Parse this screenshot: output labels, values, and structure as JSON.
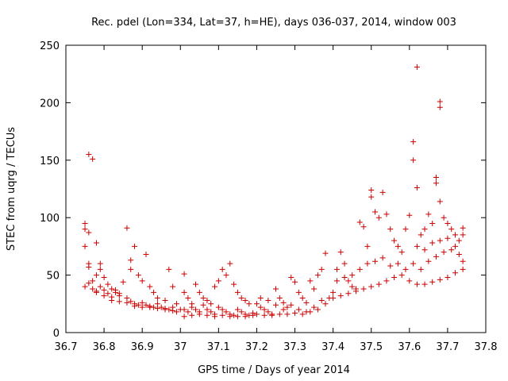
{
  "chart_data": {
    "type": "scatter",
    "title": "Rec. pdel (Lon=334, Lat=37, h=HE), days 036-037, 2014, window 003",
    "xlabel": "GPS time / Days of year 2014",
    "ylabel": "STEC from uqrg / TECUs",
    "xlim": [
      36.7,
      37.8
    ],
    "ylim": [
      0,
      250
    ],
    "xticks": [
      "36.7",
      "36.8",
      "36.9",
      "37",
      "37.1",
      "37.2",
      "37.3",
      "37.4",
      "37.5",
      "37.6",
      "37.7",
      "37.8"
    ],
    "yticks": [
      "0",
      "50",
      "100",
      "150",
      "200",
      "250"
    ],
    "grid": false,
    "marker": "+",
    "color": "#cc0000",
    "points": [
      [
        36.75,
        95
      ],
      [
        36.75,
        90
      ],
      [
        36.75,
        75
      ],
      [
        36.76,
        155
      ],
      [
        36.77,
        151
      ],
      [
        36.78,
        78
      ],
      [
        36.76,
        87
      ],
      [
        36.76,
        60
      ],
      [
        36.76,
        57
      ],
      [
        36.75,
        40
      ],
      [
        36.77,
        45
      ],
      [
        36.78,
        50
      ],
      [
        36.79,
        55
      ],
      [
        36.79,
        60
      ],
      [
        36.8,
        48
      ],
      [
        36.81,
        42
      ],
      [
        36.82,
        38
      ],
      [
        36.83,
        35
      ],
      [
        36.84,
        32
      ],
      [
        36.86,
        91
      ],
      [
        36.87,
        63
      ],
      [
        36.88,
        75
      ],
      [
        36.87,
        55
      ],
      [
        36.89,
        50
      ],
      [
        36.9,
        45
      ],
      [
        36.91,
        68
      ],
      [
        36.92,
        40
      ],
      [
        36.93,
        35
      ],
      [
        36.94,
        30
      ],
      [
        36.96,
        28
      ],
      [
        36.97,
        55
      ],
      [
        36.98,
        40
      ],
      [
        36.99,
        25
      ],
      [
        36.76,
        43
      ],
      [
        36.77,
        38
      ],
      [
        36.78,
        35
      ],
      [
        36.79,
        40
      ],
      [
        36.8,
        37
      ],
      [
        36.81,
        34
      ],
      [
        36.82,
        31
      ],
      [
        36.83,
        37
      ],
      [
        36.84,
        34
      ],
      [
        36.85,
        44
      ],
      [
        36.86,
        30
      ],
      [
        36.87,
        27
      ],
      [
        36.88,
        25
      ],
      [
        36.89,
        24
      ],
      [
        36.9,
        26
      ],
      [
        36.91,
        24
      ],
      [
        36.92,
        23
      ],
      [
        36.93,
        22
      ],
      [
        36.94,
        25
      ],
      [
        36.95,
        22
      ],
      [
        36.96,
        21
      ],
      [
        36.97,
        20
      ],
      [
        36.98,
        19
      ],
      [
        36.99,
        18
      ],
      [
        36.78,
        36
      ],
      [
        36.8,
        32
      ],
      [
        36.82,
        28
      ],
      [
        36.84,
        27
      ],
      [
        36.86,
        26
      ],
      [
        36.88,
        23
      ],
      [
        36.9,
        22
      ],
      [
        36.92,
        22
      ],
      [
        36.94,
        21
      ],
      [
        36.96,
        20
      ],
      [
        36.98,
        22
      ],
      [
        37.0,
        20
      ],
      [
        37.01,
        51
      ],
      [
        37.01,
        35
      ],
      [
        37.02,
        30
      ],
      [
        37.03,
        25
      ],
      [
        37.04,
        42
      ],
      [
        37.05,
        35
      ],
      [
        37.06,
        30
      ],
      [
        37.07,
        28
      ],
      [
        37.08,
        25
      ],
      [
        37.09,
        40
      ],
      [
        37.1,
        45
      ],
      [
        37.11,
        55
      ],
      [
        37.12,
        50
      ],
      [
        37.13,
        60
      ],
      [
        37.14,
        42
      ],
      [
        37.15,
        35
      ],
      [
        37.16,
        30
      ],
      [
        37.17,
        28
      ],
      [
        37.18,
        25
      ],
      [
        37.01,
        20
      ],
      [
        37.02,
        18
      ],
      [
        37.03,
        22
      ],
      [
        37.04,
        20
      ],
      [
        37.05,
        18
      ],
      [
        37.06,
        24
      ],
      [
        37.07,
        20
      ],
      [
        37.08,
        18
      ],
      [
        37.09,
        16
      ],
      [
        37.1,
        22
      ],
      [
        37.11,
        20
      ],
      [
        37.12,
        18
      ],
      [
        37.13,
        16
      ],
      [
        37.14,
        15
      ],
      [
        37.15,
        20
      ],
      [
        37.16,
        18
      ],
      [
        37.17,
        16
      ],
      [
        37.18,
        15
      ],
      [
        37.19,
        17
      ],
      [
        37.01,
        14
      ],
      [
        37.03,
        15
      ],
      [
        37.05,
        16
      ],
      [
        37.07,
        15
      ],
      [
        37.09,
        14
      ],
      [
        37.11,
        15
      ],
      [
        37.13,
        14
      ],
      [
        37.15,
        14
      ],
      [
        37.17,
        14
      ],
      [
        37.19,
        15
      ],
      [
        37.2,
        25
      ],
      [
        37.21,
        22
      ],
      [
        37.22,
        20
      ],
      [
        37.23,
        18
      ],
      [
        37.24,
        16
      ],
      [
        37.25,
        38
      ],
      [
        37.26,
        30
      ],
      [
        37.27,
        26
      ],
      [
        37.28,
        22
      ],
      [
        37.29,
        48
      ],
      [
        37.3,
        44
      ],
      [
        37.31,
        35
      ],
      [
        37.32,
        30
      ],
      [
        37.33,
        26
      ],
      [
        37.34,
        45
      ],
      [
        37.35,
        38
      ],
      [
        37.36,
        50
      ],
      [
        37.37,
        55
      ],
      [
        37.38,
        69
      ],
      [
        37.2,
        16
      ],
      [
        37.22,
        15
      ],
      [
        37.24,
        15
      ],
      [
        37.26,
        16
      ],
      [
        37.28,
        16
      ],
      [
        37.3,
        17
      ],
      [
        37.32,
        16
      ],
      [
        37.34,
        18
      ],
      [
        37.36,
        20
      ],
      [
        37.38,
        25
      ],
      [
        37.21,
        30
      ],
      [
        37.23,
        28
      ],
      [
        37.25,
        24
      ],
      [
        37.27,
        20
      ],
      [
        37.29,
        24
      ],
      [
        37.31,
        20
      ],
      [
        37.33,
        18
      ],
      [
        37.35,
        22
      ],
      [
        37.37,
        28
      ],
      [
        37.39,
        30
      ],
      [
        37.4,
        35
      ],
      [
        37.41,
        55
      ],
      [
        37.42,
        70
      ],
      [
        37.43,
        60
      ],
      [
        37.44,
        45
      ],
      [
        37.45,
        40
      ],
      [
        37.46,
        38
      ],
      [
        37.47,
        96
      ],
      [
        37.48,
        92
      ],
      [
        37.49,
        75
      ],
      [
        37.5,
        124
      ],
      [
        37.5,
        118
      ],
      [
        37.51,
        105
      ],
      [
        37.52,
        100
      ],
      [
        37.53,
        122
      ],
      [
        37.54,
        103
      ],
      [
        37.55,
        90
      ],
      [
        37.56,
        80
      ],
      [
        37.57,
        75
      ],
      [
        37.58,
        70
      ],
      [
        37.59,
        90
      ],
      [
        37.4,
        30
      ],
      [
        37.42,
        32
      ],
      [
        37.44,
        34
      ],
      [
        37.46,
        36
      ],
      [
        37.48,
        38
      ],
      [
        37.5,
        40
      ],
      [
        37.52,
        42
      ],
      [
        37.54,
        45
      ],
      [
        37.56,
        48
      ],
      [
        37.58,
        50
      ],
      [
        37.41,
        45
      ],
      [
        37.43,
        48
      ],
      [
        37.45,
        50
      ],
      [
        37.47,
        55
      ],
      [
        37.49,
        60
      ],
      [
        37.51,
        62
      ],
      [
        37.53,
        65
      ],
      [
        37.55,
        58
      ],
      [
        37.57,
        60
      ],
      [
        37.59,
        55
      ],
      [
        37.6,
        102
      ],
      [
        37.61,
        166
      ],
      [
        37.61,
        150
      ],
      [
        37.62,
        126
      ],
      [
        37.62,
        231
      ],
      [
        37.63,
        85
      ],
      [
        37.64,
        90
      ],
      [
        37.65,
        103
      ],
      [
        37.66,
        95
      ],
      [
        37.67,
        135
      ],
      [
        37.67,
        130
      ],
      [
        37.68,
        114
      ],
      [
        37.68,
        201
      ],
      [
        37.68,
        196
      ],
      [
        37.69,
        100
      ],
      [
        37.7,
        95
      ],
      [
        37.71,
        90
      ],
      [
        37.72,
        85
      ],
      [
        37.73,
        80
      ],
      [
        37.74,
        91
      ],
      [
        37.6,
        45
      ],
      [
        37.62,
        42
      ],
      [
        37.64,
        42
      ],
      [
        37.66,
        44
      ],
      [
        37.68,
        46
      ],
      [
        37.7,
        48
      ],
      [
        37.72,
        52
      ],
      [
        37.74,
        55
      ],
      [
        37.61,
        60
      ],
      [
        37.63,
        55
      ],
      [
        37.65,
        62
      ],
      [
        37.67,
        66
      ],
      [
        37.69,
        70
      ],
      [
        37.71,
        72
      ],
      [
        37.73,
        68
      ],
      [
        37.74,
        62
      ],
      [
        37.62,
        75
      ],
      [
        37.64,
        72
      ],
      [
        37.66,
        78
      ],
      [
        37.68,
        80
      ],
      [
        37.7,
        82
      ],
      [
        37.72,
        75
      ],
      [
        37.74,
        85
      ]
    ]
  }
}
